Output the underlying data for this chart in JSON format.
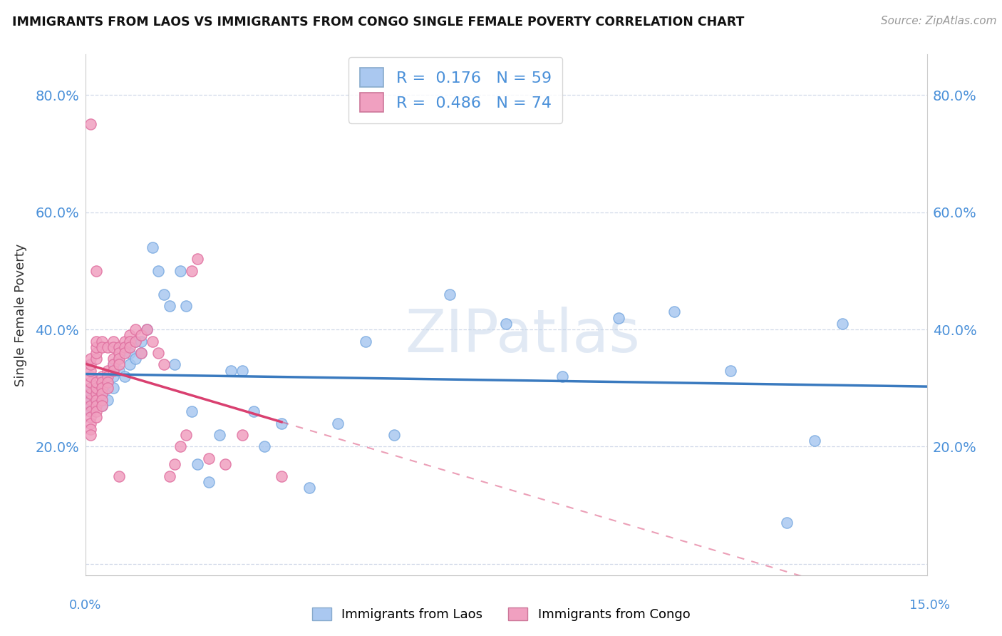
{
  "title": "IMMIGRANTS FROM LAOS VS IMMIGRANTS FROM CONGO SINGLE FEMALE POVERTY CORRELATION CHART",
  "source": "Source: ZipAtlas.com",
  "ylabel": "Single Female Poverty",
  "xlim": [
    0.0,
    0.15
  ],
  "ylim": [
    -0.02,
    0.87
  ],
  "laos_R": 0.176,
  "laos_N": 59,
  "congo_R": 0.486,
  "congo_N": 74,
  "laos_color": "#aac8f0",
  "laos_edge": "#7aaae0",
  "congo_color": "#f0a0c0",
  "congo_edge": "#e070a0",
  "laos_line_color": "#3a7abf",
  "congo_line_color": "#d94070",
  "blue_text": "#4a90d9",
  "grid_color": "#d0d8e8",
  "ytick_vals": [
    0.2,
    0.4,
    0.6,
    0.8
  ],
  "ytick_labels": [
    "20.0%",
    "40.0%",
    "60.0%",
    "80.0%"
  ],
  "laos_x": [
    0.001,
    0.001,
    0.001,
    0.001,
    0.001,
    0.002,
    0.002,
    0.002,
    0.002,
    0.003,
    0.003,
    0.003,
    0.003,
    0.004,
    0.004,
    0.004,
    0.005,
    0.005,
    0.005,
    0.006,
    0.006,
    0.007,
    0.007,
    0.008,
    0.008,
    0.009,
    0.009,
    0.01,
    0.01,
    0.011,
    0.012,
    0.013,
    0.014,
    0.015,
    0.016,
    0.017,
    0.018,
    0.019,
    0.02,
    0.022,
    0.024,
    0.026,
    0.028,
    0.03,
    0.032,
    0.035,
    0.04,
    0.045,
    0.05,
    0.055,
    0.065,
    0.075,
    0.085,
    0.095,
    0.105,
    0.115,
    0.125,
    0.13,
    0.135
  ],
  "laos_y": [
    0.28,
    0.3,
    0.27,
    0.26,
    0.29,
    0.29,
    0.28,
    0.3,
    0.27,
    0.31,
    0.29,
    0.28,
    0.27,
    0.32,
    0.3,
    0.28,
    0.34,
    0.32,
    0.3,
    0.35,
    0.33,
    0.37,
    0.32,
    0.36,
    0.34,
    0.38,
    0.35,
    0.38,
    0.36,
    0.4,
    0.54,
    0.5,
    0.46,
    0.44,
    0.34,
    0.5,
    0.44,
    0.26,
    0.17,
    0.14,
    0.22,
    0.33,
    0.33,
    0.26,
    0.2,
    0.24,
    0.13,
    0.24,
    0.38,
    0.22,
    0.46,
    0.41,
    0.32,
    0.42,
    0.43,
    0.33,
    0.07,
    0.21,
    0.41
  ],
  "congo_x": [
    0.001,
    0.001,
    0.001,
    0.001,
    0.001,
    0.001,
    0.001,
    0.001,
    0.001,
    0.001,
    0.001,
    0.001,
    0.001,
    0.001,
    0.001,
    0.002,
    0.002,
    0.002,
    0.002,
    0.002,
    0.002,
    0.002,
    0.002,
    0.002,
    0.002,
    0.002,
    0.002,
    0.003,
    0.003,
    0.003,
    0.003,
    0.003,
    0.003,
    0.003,
    0.003,
    0.004,
    0.004,
    0.004,
    0.004,
    0.004,
    0.005,
    0.005,
    0.005,
    0.005,
    0.005,
    0.006,
    0.006,
    0.006,
    0.006,
    0.006,
    0.007,
    0.007,
    0.007,
    0.008,
    0.008,
    0.008,
    0.009,
    0.009,
    0.01,
    0.01,
    0.011,
    0.012,
    0.013,
    0.014,
    0.015,
    0.016,
    0.017,
    0.018,
    0.019,
    0.02,
    0.022,
    0.025,
    0.028,
    0.035
  ],
  "congo_y": [
    0.28,
    0.29,
    0.3,
    0.31,
    0.32,
    0.33,
    0.34,
    0.27,
    0.26,
    0.25,
    0.24,
    0.23,
    0.22,
    0.75,
    0.35,
    0.29,
    0.3,
    0.31,
    0.28,
    0.27,
    0.26,
    0.25,
    0.35,
    0.36,
    0.37,
    0.38,
    0.5,
    0.32,
    0.31,
    0.3,
    0.29,
    0.28,
    0.27,
    0.38,
    0.37,
    0.33,
    0.32,
    0.31,
    0.3,
    0.37,
    0.35,
    0.34,
    0.33,
    0.38,
    0.37,
    0.37,
    0.36,
    0.35,
    0.34,
    0.15,
    0.38,
    0.37,
    0.36,
    0.39,
    0.38,
    0.37,
    0.4,
    0.38,
    0.39,
    0.36,
    0.4,
    0.38,
    0.36,
    0.34,
    0.15,
    0.17,
    0.2,
    0.22,
    0.5,
    0.52,
    0.18,
    0.17,
    0.22,
    0.15
  ]
}
